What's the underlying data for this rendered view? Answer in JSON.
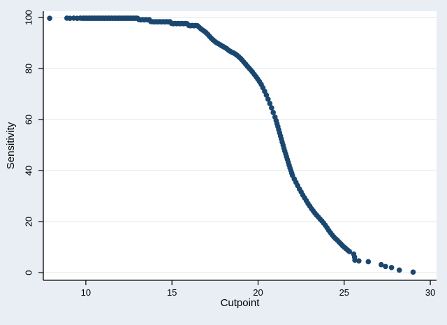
{
  "chart_data": {
    "type": "scatter",
    "title": "",
    "xlabel": "Cutpoint",
    "ylabel": "Sensitivity",
    "x_ticks": [
      10,
      15,
      20,
      25,
      30
    ],
    "y_ticks": [
      0,
      20,
      40,
      60,
      80,
      100
    ],
    "xlim": [
      7.53,
      30.36
    ],
    "ylim": [
      -3,
      102.5
    ],
    "grid": "horizontal",
    "legend": "none",
    "marker_color": "#1a476f",
    "background": "#e9eef4",
    "plot_background": "#ffffff",
    "grid_color": "#e7ebee",
    "axis_color": "#000000",
    "points": [
      [
        7.9,
        99.7
      ],
      [
        8.9,
        99.8
      ],
      [
        9.08,
        99.7
      ],
      [
        9.3,
        99.8
      ],
      [
        9.5,
        99.7
      ],
      [
        9.68,
        99.8
      ],
      [
        9.8,
        99.7
      ],
      [
        9.88,
        99.8
      ],
      [
        9.96,
        99.7
      ],
      [
        10.04,
        99.8
      ],
      [
        10.12,
        99.7
      ],
      [
        10.2,
        99.8
      ],
      [
        10.28,
        99.7
      ],
      [
        10.36,
        99.8
      ],
      [
        10.44,
        99.7
      ],
      [
        10.52,
        99.8
      ],
      [
        10.6,
        99.7
      ],
      [
        10.68,
        99.8
      ],
      [
        10.76,
        99.7
      ],
      [
        10.84,
        99.8
      ],
      [
        10.92,
        99.7
      ],
      [
        11,
        99.8
      ],
      [
        11.08,
        99.7
      ],
      [
        11.16,
        99.8
      ],
      [
        11.24,
        99.7
      ],
      [
        11.32,
        99.8
      ],
      [
        11.4,
        99.7
      ],
      [
        11.48,
        99.8
      ],
      [
        11.56,
        99.7
      ],
      [
        11.64,
        99.8
      ],
      [
        11.72,
        99.7
      ],
      [
        11.8,
        99.8
      ],
      [
        11.88,
        99.7
      ],
      [
        11.96,
        99.8
      ],
      [
        12.04,
        99.7
      ],
      [
        12.12,
        99.8
      ],
      [
        12.2,
        99.7
      ],
      [
        12.28,
        99.8
      ],
      [
        12.36,
        99.7
      ],
      [
        12.44,
        99.8
      ],
      [
        12.52,
        99.7
      ],
      [
        12.6,
        99.8
      ],
      [
        12.68,
        99.7
      ],
      [
        12.76,
        99.8
      ],
      [
        12.84,
        99.7
      ],
      [
        12.92,
        99.8
      ],
      [
        13,
        99.7
      ],
      [
        13.08,
        99.2
      ],
      [
        13.18,
        99.1
      ],
      [
        13.28,
        99.2
      ],
      [
        13.38,
        99.1
      ],
      [
        13.48,
        99.2
      ],
      [
        13.58,
        99.1
      ],
      [
        13.68,
        99.2
      ],
      [
        13.78,
        98.4
      ],
      [
        13.88,
        98.4
      ],
      [
        13.98,
        98.3
      ],
      [
        14.08,
        98.4
      ],
      [
        14.18,
        98.3
      ],
      [
        14.28,
        98.4
      ],
      [
        14.38,
        98.3
      ],
      [
        14.48,
        98.4
      ],
      [
        14.58,
        98.3
      ],
      [
        14.68,
        98.4
      ],
      [
        14.78,
        98.3
      ],
      [
        14.88,
        98.4
      ],
      [
        14.98,
        97.7
      ],
      [
        15.08,
        97.6
      ],
      [
        15.18,
        97.7
      ],
      [
        15.28,
        97.6
      ],
      [
        15.38,
        97.7
      ],
      [
        15.48,
        97.6
      ],
      [
        15.58,
        97.7
      ],
      [
        15.68,
        97.6
      ],
      [
        15.78,
        97.7
      ],
      [
        15.88,
        97.6
      ],
      [
        15.98,
        96.9
      ],
      [
        16.08,
        96.8
      ],
      [
        16.18,
        96.9
      ],
      [
        16.28,
        96.8
      ],
      [
        16.38,
        96.9
      ],
      [
        16.48,
        96.8
      ],
      [
        16.58,
        96.2
      ],
      [
        16.68,
        95.6
      ],
      [
        16.78,
        95.1
      ],
      [
        16.88,
        94.6
      ],
      [
        16.98,
        94.1
      ],
      [
        17.08,
        93.4
      ],
      [
        17.18,
        92.6
      ],
      [
        17.28,
        91.9
      ],
      [
        17.38,
        91.3
      ],
      [
        17.48,
        90.7
      ],
      [
        17.58,
        90.2
      ],
      [
        17.68,
        89.8
      ],
      [
        17.78,
        89.4
      ],
      [
        17.88,
        89
      ],
      [
        17.98,
        88.6
      ],
      [
        18.08,
        88.2
      ],
      [
        18.18,
        87.8
      ],
      [
        18.28,
        87.2
      ],
      [
        18.38,
        86.8
      ],
      [
        18.48,
        86.4
      ],
      [
        18.58,
        86.1
      ],
      [
        18.68,
        85.7
      ],
      [
        18.78,
        85.2
      ],
      [
        18.88,
        84.6
      ],
      [
        18.98,
        84
      ],
      [
        19.08,
        83.3
      ],
      [
        19.18,
        82.5
      ],
      [
        19.28,
        81.7
      ],
      [
        19.38,
        80.9
      ],
      [
        19.48,
        80.2
      ],
      [
        19.58,
        79.4
      ],
      [
        19.68,
        78.6
      ],
      [
        19.78,
        77.7
      ],
      [
        19.88,
        76.8
      ],
      [
        19.98,
        75.9
      ],
      [
        20.08,
        74.9
      ],
      [
        20.18,
        73.8
      ],
      [
        20.28,
        72.5
      ],
      [
        20.38,
        71.1
      ],
      [
        20.48,
        69.6
      ],
      [
        20.58,
        68
      ],
      [
        20.68,
        66.3
      ],
      [
        20.78,
        64.6
      ],
      [
        20.88,
        62.8
      ],
      [
        20.98,
        61
      ],
      [
        21.05,
        59.6
      ],
      [
        21.1,
        58.4
      ],
      [
        21.15,
        57.2
      ],
      [
        21.2,
        56
      ],
      [
        21.25,
        54.8
      ],
      [
        21.3,
        53.6
      ],
      [
        21.35,
        52.4
      ],
      [
        21.4,
        51.2
      ],
      [
        21.45,
        50
      ],
      [
        21.5,
        48.8
      ],
      [
        21.55,
        47.7
      ],
      [
        21.6,
        46.6
      ],
      [
        21.65,
        45.5
      ],
      [
        21.7,
        44.4
      ],
      [
        21.75,
        43.3
      ],
      [
        21.8,
        42.2
      ],
      [
        21.85,
        41.1
      ],
      [
        21.9,
        40.1
      ],
      [
        21.95,
        39.1
      ],
      [
        22,
        38.1
      ],
      [
        22.1,
        36.7
      ],
      [
        22.2,
        35.4
      ],
      [
        22.3,
        34.1
      ],
      [
        22.4,
        32.8
      ],
      [
        22.5,
        31.6
      ],
      [
        22.6,
        30.4
      ],
      [
        22.7,
        29.3
      ],
      [
        22.8,
        28.2
      ],
      [
        22.9,
        27.1
      ],
      [
        23,
        26.1
      ],
      [
        23.1,
        25.1
      ],
      [
        23.2,
        24.2
      ],
      [
        23.3,
        23.3
      ],
      [
        23.4,
        22.5
      ],
      [
        23.5,
        21.8
      ],
      [
        23.6,
        21
      ],
      [
        23.7,
        20.3
      ],
      [
        23.8,
        19.5
      ],
      [
        23.9,
        18.6
      ],
      [
        24,
        17.6
      ],
      [
        24.1,
        16.6
      ],
      [
        24.2,
        15.7
      ],
      [
        24.3,
        14.8
      ],
      [
        24.4,
        14
      ],
      [
        24.5,
        13.3
      ],
      [
        24.6,
        12.7
      ],
      [
        24.7,
        12
      ],
      [
        24.8,
        11.3
      ],
      [
        24.9,
        10.6
      ],
      [
        25,
        10
      ],
      [
        25.1,
        9.4
      ],
      [
        25.2,
        8.8
      ],
      [
        25.3,
        8.3
      ],
      [
        25.55,
        7.3
      ],
      [
        25.6,
        6.1
      ],
      [
        25.62,
        4.9
      ],
      [
        25.85,
        4.6
      ],
      [
        26.4,
        4.3
      ],
      [
        27.15,
        3.1
      ],
      [
        27.4,
        2.4
      ],
      [
        27.75,
        2
      ],
      [
        28.2,
        1
      ],
      [
        29,
        0.2
      ]
    ]
  }
}
